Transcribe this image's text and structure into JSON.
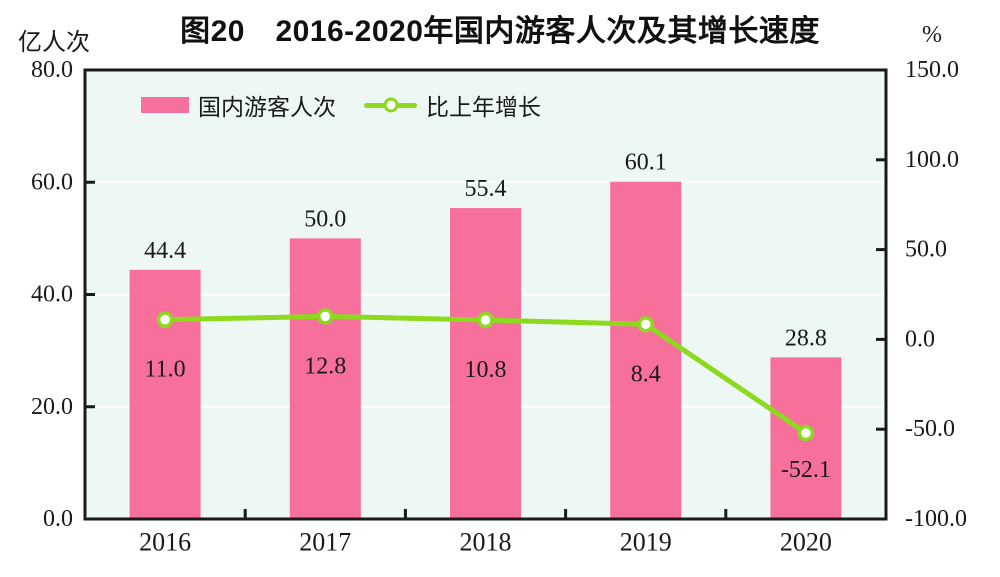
{
  "title": "图20　2016-2020年国内游客人次及其增长速度",
  "axes": {
    "left_unit": "亿人次",
    "right_unit": "%"
  },
  "legend": {
    "items": [
      {
        "label": "国内游客人次",
        "swatch": "bar-swatch"
      },
      {
        "label": "比上年增长",
        "swatch": "line-marker-swatch"
      }
    ]
  },
  "colors": {
    "bar": "#F7709B",
    "line": "#8CD91E",
    "marker_fill": "#FFFFFF",
    "plot_background": "#EDF7F3",
    "gridline": "#FFFFFF",
    "axis": "#1A1A1A",
    "text": "#1A1A1A"
  },
  "chart_data": {
    "type": "combo",
    "title": "图20　2016-2020年国内游客人次及其增长速度",
    "categories": [
      "2016",
      "2017",
      "2018",
      "2019",
      "2020"
    ],
    "series": [
      {
        "name": "国内游客人次",
        "type": "bar",
        "axis": "left",
        "unit": "亿人次",
        "values": [
          44.4,
          50.0,
          55.4,
          60.1,
          28.8
        ],
        "labels": [
          "44.4",
          "50.0",
          "55.4",
          "60.1",
          "28.8"
        ]
      },
      {
        "name": "比上年增长",
        "type": "line",
        "axis": "right",
        "unit": "%",
        "values": [
          11.0,
          12.8,
          10.8,
          8.4,
          -52.1
        ],
        "labels": [
          "11.0",
          "12.8",
          "10.8",
          "8.4",
          "-52.1"
        ]
      }
    ],
    "left_axis": {
      "unit": "亿人次",
      "range": [
        0,
        80
      ],
      "ticks": [
        80,
        60,
        40,
        20,
        0
      ],
      "tick_labels": [
        "80.0",
        "60.0",
        "40.0",
        "20.0",
        "0.0"
      ]
    },
    "right_axis": {
      "unit": "%",
      "range": [
        -100,
        150
      ],
      "ticks": [
        150,
        100,
        50,
        0,
        -50,
        -100
      ],
      "tick_labels": [
        "150.0",
        "100.0",
        "50.0",
        "0.0",
        "-50.0",
        "-100.0"
      ]
    },
    "grid": true,
    "legend_position": "top-left-inside"
  }
}
